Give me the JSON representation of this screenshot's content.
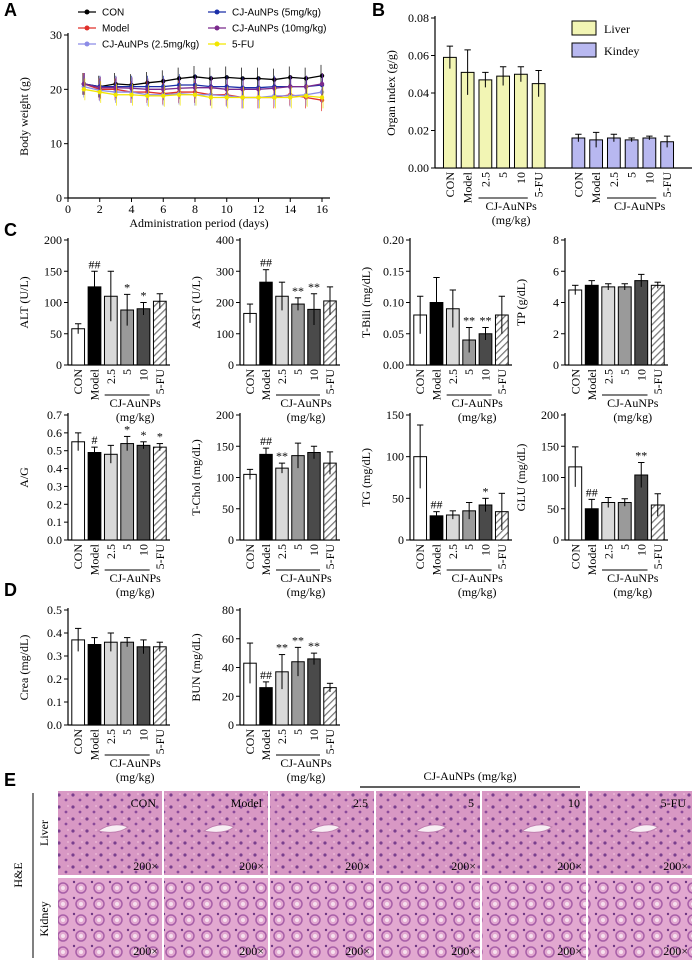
{
  "panel_labels": [
    "A",
    "B",
    "C",
    "D",
    "E"
  ],
  "chart_data": [
    {
      "type": "line",
      "x": [
        1,
        2,
        3,
        4,
        5,
        6,
        7,
        8,
        9,
        10,
        11,
        12,
        13,
        14,
        15,
        16
      ],
      "xlim": [
        0,
        16
      ],
      "xticks": [
        0,
        2,
        4,
        6,
        8,
        10,
        12,
        14,
        16
      ],
      "ylim": [
        0,
        30
      ],
      "yticks": [
        0,
        10,
        20,
        30
      ],
      "x_label": "Administration period (days)",
      "y_label": "Body weight (g)",
      "series": [
        {
          "name": "CON",
          "color": "#000000",
          "values": [
            21,
            20.5,
            21,
            20.8,
            21.2,
            21.5,
            22,
            22.3,
            22,
            22.2,
            22,
            22,
            21.8,
            22.2,
            22,
            22.5
          ],
          "errors": [
            2,
            2,
            2,
            2,
            2,
            2,
            2,
            2,
            2,
            2,
            2,
            2,
            2,
            2,
            2,
            2
          ]
        },
        {
          "name": "Model",
          "color": "#e0302a",
          "values": [
            21,
            20,
            20,
            19.5,
            19.5,
            19.2,
            19.5,
            19.5,
            19,
            19,
            18.5,
            18.5,
            18.5,
            19,
            18.5,
            18
          ],
          "errors": [
            2,
            2,
            2,
            2,
            2,
            2,
            2,
            2,
            2,
            2,
            2,
            2,
            2,
            2,
            2,
            2
          ]
        },
        {
          "name": "CJ-AuNPs (2.5mg/kg)",
          "color": "#8c8ce6",
          "values": [
            20.5,
            19.8,
            19.5,
            19.5,
            19,
            19,
            19.2,
            19,
            19,
            18.8,
            18.5,
            18.5,
            18.8,
            18.8,
            19,
            19.5
          ],
          "errors": [
            2,
            2,
            2,
            2,
            2,
            2,
            2,
            2,
            2,
            2,
            2,
            2,
            2,
            2,
            2,
            2
          ]
        },
        {
          "name": "CJ-AuNPs (5mg/kg)",
          "color": "#1a2fa8",
          "values": [
            21,
            20.5,
            20.5,
            20.5,
            20.5,
            20.5,
            20.8,
            20.8,
            20.5,
            20.5,
            20.3,
            20.3,
            20.5,
            20.5,
            20.5,
            20.8
          ],
          "errors": [
            2,
            2,
            2,
            2,
            2,
            2,
            2,
            2,
            2,
            2,
            2,
            2,
            2,
            2,
            2,
            2
          ]
        },
        {
          "name": "CJ-AuNPs (10mg/kg)",
          "color": "#7a2a8c",
          "values": [
            21,
            20.3,
            20.3,
            20.2,
            20,
            20,
            20.2,
            20.3,
            20.3,
            20,
            20,
            20,
            20.2,
            20.5,
            20.5,
            21
          ],
          "errors": [
            2,
            2,
            2,
            2,
            2,
            2,
            2,
            2,
            2,
            2,
            2,
            2,
            2,
            2,
            2,
            2
          ]
        },
        {
          "name": "5-FU",
          "color": "#f2e600",
          "values": [
            20,
            19.5,
            19,
            19,
            18.8,
            18.8,
            19,
            19,
            18.5,
            18.5,
            18.5,
            18.5,
            18.5,
            18.5,
            18.8,
            18.5
          ],
          "errors": [
            2,
            2,
            2,
            2,
            2,
            2,
            2,
            2,
            2,
            2,
            2,
            2,
            2,
            2,
            2,
            2
          ]
        }
      ]
    },
    {
      "type": "bar",
      "y_label": "Organ index (g/g)",
      "ylim": [
        0,
        0.08
      ],
      "yticks": [
        {
          "value": 0,
          "label": "0.00"
        },
        {
          "value": 0.02,
          "label": "0.02"
        },
        {
          "value": 0.04,
          "label": "0.04"
        },
        {
          "value": 0.06,
          "label": "0.06"
        },
        {
          "value": 0.08,
          "label": "0.08"
        }
      ],
      "categories": [
        "CON",
        "Model",
        "2.5",
        "5",
        "10",
        "5-FU"
      ],
      "group_label": "CJ-AuNPs",
      "group_unit": "(mg/kg)",
      "series": [
        {
          "name": "Liver",
          "color": "#f2f5b4",
          "values": [
            0.059,
            0.051,
            0.047,
            0.049,
            0.05,
            0.045
          ],
          "errors": [
            0.006,
            0.012,
            0.004,
            0.005,
            0.004,
            0.007
          ]
        },
        {
          "name": "Kindey",
          "color": "#b8b8f0",
          "values": [
            0.016,
            0.015,
            0.016,
            0.015,
            0.016,
            0.014
          ],
          "errors": [
            0.002,
            0.004,
            0.002,
            0.001,
            0.001,
            0.003
          ]
        }
      ]
    },
    {
      "type": "bar",
      "y_label": "ALT (U/L)",
      "ylim": [
        0,
        200
      ],
      "yticks": [
        0,
        50,
        100,
        150,
        200
      ],
      "categories": [
        "CON",
        "Model",
        "2.5",
        "5",
        "10",
        "5-FU"
      ],
      "group_label": "CJ-AuNPs",
      "group_unit": "(mg/kg)",
      "colors": [
        "#ffffff",
        "#000000",
        "#d9d9d9",
        "#9a9a9a",
        "#4a4a4a",
        "#ffffff"
      ],
      "hatched": [
        false,
        false,
        false,
        false,
        false,
        true
      ],
      "values": [
        58,
        125,
        110,
        88,
        90,
        102
      ],
      "errors": [
        8,
        25,
        40,
        25,
        10,
        12
      ],
      "annotations": [
        null,
        "##",
        null,
        "*",
        "*",
        null
      ]
    },
    {
      "type": "bar",
      "y_label": "AST (U/L)",
      "ylim": [
        0,
        400
      ],
      "yticks": [
        0,
        100,
        200,
        300,
        400
      ],
      "categories": [
        "CON",
        "Model",
        "2.5",
        "5",
        "10",
        "5-FU"
      ],
      "group_label": "CJ-AuNPs",
      "group_unit": "(mg/kg)",
      "colors": [
        "#ffffff",
        "#000000",
        "#d9d9d9",
        "#9a9a9a",
        "#4a4a4a",
        "#ffffff"
      ],
      "hatched": [
        false,
        false,
        false,
        false,
        false,
        true
      ],
      "values": [
        165,
        265,
        220,
        195,
        178,
        205
      ],
      "errors": [
        30,
        40,
        45,
        20,
        50,
        45
      ],
      "annotations": [
        null,
        "##",
        null,
        "**",
        "**",
        null
      ]
    },
    {
      "type": "bar",
      "y_label": "T-Bili (mg/dL)",
      "ylim": [
        0,
        0.2
      ],
      "yticks": [
        {
          "value": 0,
          "label": "0.00"
        },
        {
          "value": 0.05,
          "label": "0.05"
        },
        {
          "value": 0.1,
          "label": "0.10"
        },
        {
          "value": 0.15,
          "label": "0.15"
        },
        {
          "value": 0.2,
          "label": "0.20"
        }
      ],
      "categories": [
        "CON",
        "Model",
        "2.5",
        "5",
        "10",
        "5-FU"
      ],
      "group_label": "CJ-AuNPs",
      "group_unit": "(mg/kg)",
      "colors": [
        "#ffffff",
        "#000000",
        "#d9d9d9",
        "#9a9a9a",
        "#4a4a4a",
        "#ffffff"
      ],
      "hatched": [
        false,
        false,
        false,
        false,
        false,
        true
      ],
      "values": [
        0.08,
        0.1,
        0.09,
        0.04,
        0.05,
        0.08
      ],
      "errors": [
        0.03,
        0.04,
        0.03,
        0.02,
        0.01,
        0.03
      ],
      "annotations": [
        null,
        null,
        null,
        "**",
        "**",
        null
      ]
    },
    {
      "type": "bar",
      "y_label": "TP (g/dL)",
      "ylim": [
        0,
        8
      ],
      "yticks": [
        0,
        2,
        4,
        6,
        8
      ],
      "categories": [
        "CON",
        "Model",
        "2.5",
        "5",
        "10",
        "5-FU"
      ],
      "group_label": "CJ-AuNPs",
      "group_unit": "(mg/kg)",
      "colors": [
        "#ffffff",
        "#000000",
        "#d9d9d9",
        "#9a9a9a",
        "#4a4a4a",
        "#ffffff"
      ],
      "hatched": [
        false,
        false,
        false,
        false,
        false,
        true
      ],
      "values": [
        4.8,
        5.1,
        5.0,
        5.0,
        5.4,
        5.1
      ],
      "errors": [
        0.3,
        0.3,
        0.2,
        0.2,
        0.4,
        0.2
      ]
    },
    {
      "type": "bar",
      "y_label": "A/G",
      "ylim": [
        0,
        0.7
      ],
      "yticks": [
        {
          "value": 0,
          "label": "0.0"
        },
        {
          "value": 0.1,
          "label": "0.1"
        },
        {
          "value": 0.2,
          "label": "0.2"
        },
        {
          "value": 0.3,
          "label": "0.3"
        },
        {
          "value": 0.4,
          "label": "0.4"
        },
        {
          "value": 0.5,
          "label": "0.5"
        },
        {
          "value": 0.6,
          "label": "0.6"
        },
        {
          "value": 0.7,
          "label": "0.7"
        }
      ],
      "categories": [
        "CON",
        "Model",
        "2.5",
        "5",
        "10",
        "5-FU"
      ],
      "group_label": "CJ-AuNPs",
      "group_unit": "(mg/kg)",
      "colors": [
        "#ffffff",
        "#000000",
        "#d9d9d9",
        "#9a9a9a",
        "#4a4a4a",
        "#ffffff"
      ],
      "hatched": [
        false,
        false,
        false,
        false,
        false,
        true
      ],
      "values": [
        0.55,
        0.49,
        0.48,
        0.54,
        0.53,
        0.52
      ],
      "errors": [
        0.05,
        0.03,
        0.05,
        0.04,
        0.02,
        0.02
      ],
      "annotations": [
        null,
        "#",
        null,
        "*",
        "*",
        "*"
      ]
    },
    {
      "type": "bar",
      "y_label": "T-Chol (mg/dL)",
      "ylim": [
        0,
        200
      ],
      "yticks": [
        0,
        50,
        100,
        150,
        200
      ],
      "categories": [
        "CON",
        "Model",
        "2.5",
        "5",
        "10",
        "5-FU"
      ],
      "group_label": "CJ-AuNPs",
      "group_unit": "(mg/kg)",
      "colors": [
        "#ffffff",
        "#000000",
        "#d9d9d9",
        "#9a9a9a",
        "#4a4a4a",
        "#ffffff"
      ],
      "hatched": [
        false,
        false,
        false,
        false,
        false,
        true
      ],
      "values": [
        105,
        137,
        115,
        135,
        140,
        123
      ],
      "errors": [
        8,
        10,
        8,
        20,
        10,
        18
      ],
      "annotations": [
        null,
        "##",
        "**",
        null,
        null,
        null
      ]
    },
    {
      "type": "bar",
      "y_label": "TG (mg/dL)",
      "ylim": [
        0,
        150
      ],
      "yticks": [
        0,
        50,
        100,
        150
      ],
      "categories": [
        "CON",
        "Model",
        "2.5",
        "5",
        "10",
        "5-FU"
      ],
      "group_label": "CJ-AuNPs",
      "group_unit": "(mg/kg)",
      "colors": [
        "#ffffff",
        "#000000",
        "#d9d9d9",
        "#9a9a9a",
        "#4a4a4a",
        "#ffffff"
      ],
      "hatched": [
        false,
        false,
        false,
        false,
        false,
        true
      ],
      "values": [
        100,
        29,
        30,
        35,
        42,
        34
      ],
      "errors": [
        38,
        5,
        5,
        10,
        8,
        22
      ],
      "annotations": [
        null,
        "##",
        null,
        null,
        "*",
        null
      ]
    },
    {
      "type": "bar",
      "y_label": "GLU (mg/dL)",
      "ylim": [
        0,
        200
      ],
      "yticks": [
        0,
        50,
        100,
        150,
        200
      ],
      "categories": [
        "CON",
        "Model",
        "2.5",
        "5",
        "10",
        "5-FU"
      ],
      "group_label": "CJ-AuNPs",
      "group_unit": "(mg/kg)",
      "colors": [
        "#ffffff",
        "#000000",
        "#d9d9d9",
        "#9a9a9a",
        "#4a4a4a",
        "#ffffff"
      ],
      "hatched": [
        false,
        false,
        false,
        false,
        false,
        true
      ],
      "values": [
        117,
        50,
        60,
        60,
        104,
        56
      ],
      "errors": [
        32,
        15,
        8,
        6,
        20,
        18
      ],
      "annotations": [
        null,
        "##",
        null,
        null,
        "**",
        null
      ]
    },
    {
      "type": "bar",
      "y_label": "Crea (mg/dL)",
      "ylim": [
        0,
        0.5
      ],
      "yticks": [
        {
          "value": 0,
          "label": "0.0"
        },
        {
          "value": 0.1,
          "label": "0.1"
        },
        {
          "value": 0.2,
          "label": "0.2"
        },
        {
          "value": 0.3,
          "label": "0.3"
        },
        {
          "value": 0.4,
          "label": "0.4"
        },
        {
          "value": 0.5,
          "label": "0.5"
        }
      ],
      "categories": [
        "CON",
        "Model",
        "2.5",
        "5",
        "10",
        "5-FU"
      ],
      "group_label": "CJ-AuNPs",
      "group_unit": "(mg/kg)",
      "colors": [
        "#ffffff",
        "#000000",
        "#d9d9d9",
        "#9a9a9a",
        "#4a4a4a",
        "#ffffff"
      ],
      "hatched": [
        false,
        false,
        false,
        false,
        false,
        true
      ],
      "values": [
        0.37,
        0.35,
        0.36,
        0.36,
        0.34,
        0.34
      ],
      "errors": [
        0.05,
        0.03,
        0.04,
        0.02,
        0.03,
        0.02
      ]
    },
    {
      "type": "bar",
      "y_label": "BUN (mg/dL)",
      "ylim": [
        0,
        80
      ],
      "yticks": [
        0,
        20,
        40,
        60,
        80
      ],
      "categories": [
        "CON",
        "Model",
        "2.5",
        "5",
        "10",
        "5-FU"
      ],
      "group_label": "CJ-AuNPs",
      "group_unit": "(mg/kg)",
      "colors": [
        "#ffffff",
        "#000000",
        "#d9d9d9",
        "#9a9a9a",
        "#4a4a4a",
        "#ffffff"
      ],
      "hatched": [
        false,
        false,
        false,
        false,
        false,
        true
      ],
      "values": [
        43,
        26,
        37,
        44,
        46,
        26
      ],
      "errors": [
        14,
        4,
        12,
        10,
        4,
        3
      ],
      "annotations": [
        null,
        "##",
        "**",
        "**",
        "**",
        null
      ]
    }
  ],
  "histology": {
    "header": "CJ-AuNPs (mg/kg)",
    "stain": "H&E",
    "rows": [
      "Liver",
      "Kidney"
    ],
    "columns": [
      "CON",
      "Model",
      "2.5",
      "5",
      "10",
      "5-FU"
    ],
    "magnification": "200×"
  }
}
